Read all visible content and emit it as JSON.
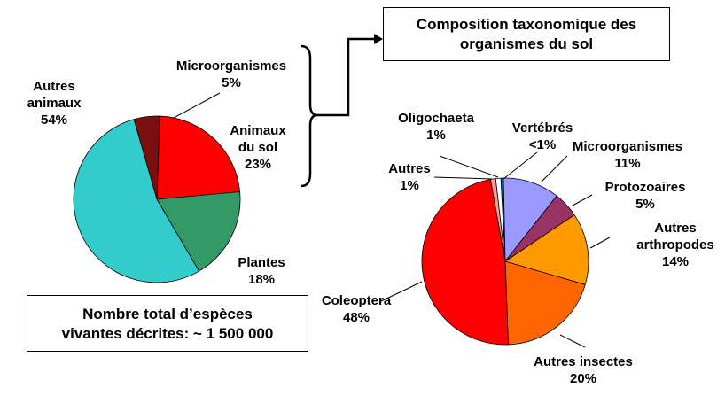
{
  "chart_data": [
    {
      "type": "pie",
      "labels": [
        "Microorganismes",
        "Animaux du sol",
        "Plantes",
        "Autres animaux"
      ],
      "values": [
        5,
        23,
        18,
        54
      ],
      "value_labels": [
        "5%",
        "23%",
        "18%",
        "54%"
      ],
      "label_lines": [
        [
          "Microorganismes"
        ],
        [
          "Animaux",
          "du sol"
        ],
        [
          "Plantes"
        ],
        [
          "Autres",
          "animaux"
        ]
      ],
      "colors": [
        "#7b0f0f",
        "#ff0000",
        "#339966",
        "#33cccc"
      ]
    },
    {
      "type": "pie",
      "labels": [
        "Vertébrés",
        "Microorganismes",
        "Protozoaires",
        "Autres arthropodes",
        "Autres insectes",
        "Coleoptera",
        "Autres",
        "Oligochaeta"
      ],
      "values": [
        0.5,
        11,
        5,
        14,
        20,
        48,
        1,
        1
      ],
      "value_labels": [
        "<1%",
        "11%",
        "5%",
        "14%",
        "20%",
        "48%",
        "1%",
        "1%"
      ],
      "label_lines": [
        [
          "Vertébrés"
        ],
        [
          "Microorganismes"
        ],
        [
          "Protozoaires"
        ],
        [
          "Autres",
          "arthropodes"
        ],
        [
          "Autres insectes"
        ],
        [
          "Coleoptera"
        ],
        [
          "Autres"
        ],
        [
          "Oligochaeta"
        ]
      ],
      "colors": [
        "#0055cc",
        "#9999ff",
        "#993366",
        "#ff9900",
        "#ff6600",
        "#ff0000",
        "#ff9999",
        "#ffffff"
      ]
    }
  ],
  "title_box": {
    "line1": "Composition taxonomique des",
    "line2": "organismes du sol"
  },
  "total_box": {
    "line1": "Nombre total d’espèces",
    "line2": "vivantes décrites: ~ 1 500 000"
  }
}
